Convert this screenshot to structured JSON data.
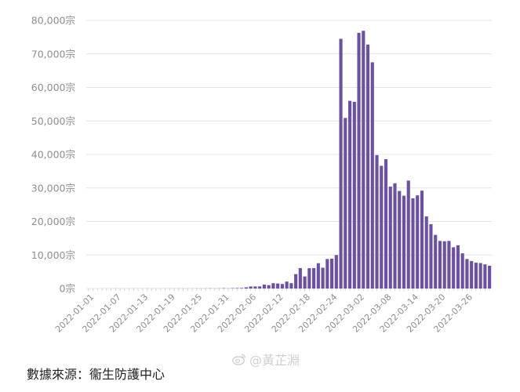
{
  "chart_data": {
    "type": "bar",
    "title": "",
    "xlabel": "",
    "ylabel": "",
    "y_unit": "宗",
    "ylim": [
      0,
      80000
    ],
    "y_ticks": [
      0,
      10000,
      20000,
      30000,
      40000,
      50000,
      60000,
      70000,
      80000
    ],
    "y_tick_labels": [
      "0宗",
      "10,000宗",
      "20,000宗",
      "30,000宗",
      "40,000宗",
      "50,000宗",
      "60,000宗",
      "70,000宗",
      "80,000宗"
    ],
    "x_tick_labels": [
      "2022-01-01",
      "2022-01-07",
      "2022-01-13",
      "2022-01-19",
      "2022-01-25",
      "2022-01-31",
      "2022-02-06",
      "2022-02-12",
      "2022-02-18",
      "2022-02-24",
      "2022-03-02",
      "2022-03-08",
      "2022-03-14",
      "2022-03-20",
      "2022-03-26"
    ],
    "grid": true,
    "bar_color": "#6a51a3",
    "categories": [
      "2022-01-01",
      "2022-01-02",
      "2022-01-03",
      "2022-01-04",
      "2022-01-05",
      "2022-01-06",
      "2022-01-07",
      "2022-01-08",
      "2022-01-09",
      "2022-01-10",
      "2022-01-11",
      "2022-01-12",
      "2022-01-13",
      "2022-01-14",
      "2022-01-15",
      "2022-01-16",
      "2022-01-17",
      "2022-01-18",
      "2022-01-19",
      "2022-01-20",
      "2022-01-21",
      "2022-01-22",
      "2022-01-23",
      "2022-01-24",
      "2022-01-25",
      "2022-01-26",
      "2022-01-27",
      "2022-01-28",
      "2022-01-29",
      "2022-01-30",
      "2022-01-31",
      "2022-02-01",
      "2022-02-02",
      "2022-02-03",
      "2022-02-04",
      "2022-02-05",
      "2022-02-06",
      "2022-02-07",
      "2022-02-08",
      "2022-02-09",
      "2022-02-10",
      "2022-02-11",
      "2022-02-12",
      "2022-02-13",
      "2022-02-14",
      "2022-02-15",
      "2022-02-16",
      "2022-02-17",
      "2022-02-18",
      "2022-02-19",
      "2022-02-20",
      "2022-02-21",
      "2022-02-22",
      "2022-02-23",
      "2022-02-24",
      "2022-02-25",
      "2022-02-26",
      "2022-02-27",
      "2022-02-28",
      "2022-03-01",
      "2022-03-02",
      "2022-03-03",
      "2022-03-04",
      "2022-03-05",
      "2022-03-06",
      "2022-03-07",
      "2022-03-08",
      "2022-03-09",
      "2022-03-10",
      "2022-03-11",
      "2022-03-12",
      "2022-03-13",
      "2022-03-14",
      "2022-03-15",
      "2022-03-16",
      "2022-03-17",
      "2022-03-18",
      "2022-03-19",
      "2022-03-20",
      "2022-03-21",
      "2022-03-22",
      "2022-03-23",
      "2022-03-24",
      "2022-03-25",
      "2022-03-26",
      "2022-03-27",
      "2022-03-28",
      "2022-03-29",
      "2022-03-30",
      "2022-03-31"
    ],
    "values": [
      0,
      0,
      5,
      10,
      10,
      15,
      20,
      15,
      10,
      15,
      20,
      20,
      15,
      20,
      15,
      20,
      15,
      20,
      25,
      20,
      25,
      30,
      25,
      25,
      35,
      30,
      40,
      60,
      40,
      60,
      100,
      50,
      120,
      130,
      150,
      350,
      610,
      610,
      620,
      1160,
      1000,
      1590,
      1500,
      1350,
      2070,
      1600,
      4300,
      6100,
      3600,
      6050,
      6100,
      7550,
      6200,
      8800,
      8900,
      10000,
      74500,
      50900,
      56000,
      55700,
      76300,
      76900,
      72800,
      67500,
      39800,
      36600,
      38600,
      30400,
      31400,
      29100,
      27700,
      32200,
      26900,
      27800,
      29200,
      21500,
      19200,
      16000,
      14200,
      14100,
      14200,
      12300,
      12900,
      10500,
      8800,
      8200,
      7700,
      7600,
      7200,
      6800
    ]
  },
  "footer": {
    "source_text": "數據來源：衞生防護中心",
    "watermark_text": "@黃芷淵",
    "watermark_icon": "weibo-icon"
  }
}
